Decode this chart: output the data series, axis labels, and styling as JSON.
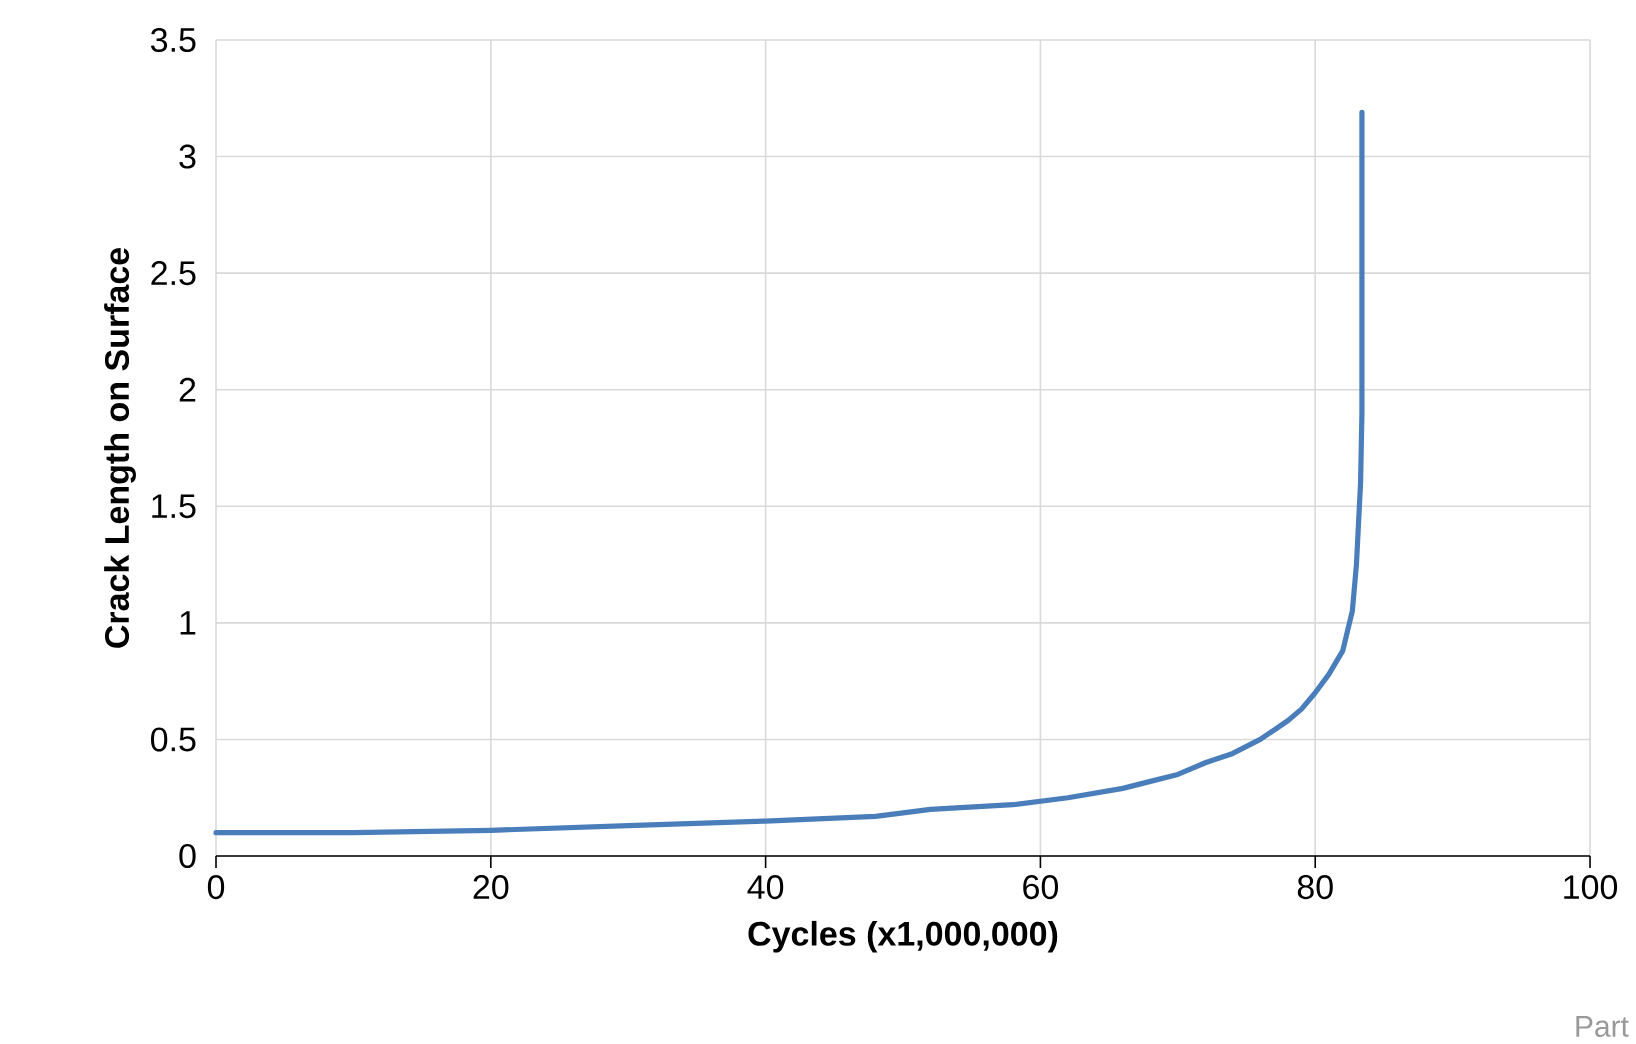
{
  "chart_data": {
    "type": "line",
    "xlabel": "Cycles (x1,000,000)",
    "ylabel": "Crack Length on Surface",
    "annotations": [
      "Part"
    ],
    "x": [
      0,
      10,
      20,
      30,
      40,
      48,
      52,
      58,
      62,
      66,
      68,
      70,
      72,
      74,
      76,
      78,
      79,
      80,
      81,
      82,
      82.7,
      83.0,
      83.3,
      83.4,
      83.4
    ],
    "series": [
      {
        "color": "#4a7ebb",
        "values": [
          0.1,
          0.1,
          0.11,
          0.13,
          0.15,
          0.17,
          0.2,
          0.22,
          0.25,
          0.29,
          0.32,
          0.35,
          0.4,
          0.44,
          0.5,
          0.58,
          0.63,
          0.7,
          0.78,
          0.88,
          1.05,
          1.25,
          1.6,
          1.9,
          3.19
        ]
      }
    ],
    "xlim": [
      0,
      100
    ],
    "xticks": [
      0,
      20,
      40,
      60,
      80,
      100
    ],
    "ylim": [
      0,
      3.5
    ],
    "yticks": [
      0,
      0.5,
      1,
      1.5,
      2,
      2.5,
      3,
      3.5
    ],
    "grid": true,
    "marker": "none",
    "line_style": "solid"
  }
}
